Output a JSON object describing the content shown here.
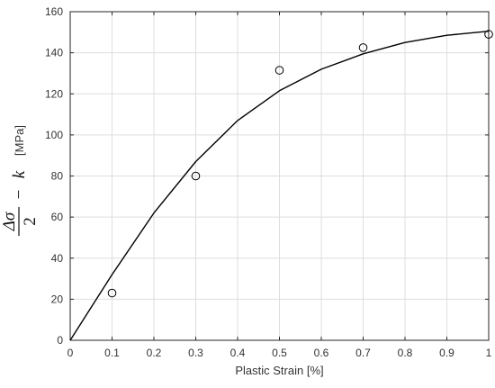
{
  "chart_data": {
    "type": "line",
    "title": "",
    "xlabel": "Plastic Strain [%]",
    "ylabel": {
      "numerator": "Δσ",
      "denominator": "2",
      "minus": "−",
      "k": "k",
      "unit": "[MPa]"
    },
    "xlim": [
      0,
      1
    ],
    "ylim": [
      0,
      160
    ],
    "x_ticks": [
      0,
      0.1,
      0.2,
      0.3,
      0.4,
      0.5,
      0.6,
      0.7,
      0.8,
      0.9,
      1
    ],
    "x_tick_labels": [
      "0",
      "0.1",
      "0.2",
      "0.3",
      "0.4",
      "0.5",
      "0.6",
      "0.7",
      "0.8",
      "0.9",
      "1"
    ],
    "y_ticks": [
      0,
      20,
      40,
      60,
      80,
      100,
      120,
      140,
      160
    ],
    "y_tick_labels": [
      "0",
      "20",
      "40",
      "60",
      "80",
      "100",
      "120",
      "140",
      "160"
    ],
    "grid": true,
    "series": [
      {
        "style": "line",
        "color": "#000000",
        "x": [
          0,
          0.1,
          0.2,
          0.3,
          0.4,
          0.5,
          0.6,
          0.7,
          0.8,
          0.9,
          1.0
        ],
        "y": [
          0,
          32,
          62,
          87,
          107,
          121.5,
          132,
          139.5,
          145,
          148.5,
          150.5
        ]
      },
      {
        "style": "markers",
        "marker": "open-circle",
        "color": "#000000",
        "x": [
          0.1,
          0.3,
          0.5,
          0.7,
          1.0
        ],
        "y": [
          23,
          80,
          131.5,
          142.5,
          149
        ]
      }
    ]
  }
}
